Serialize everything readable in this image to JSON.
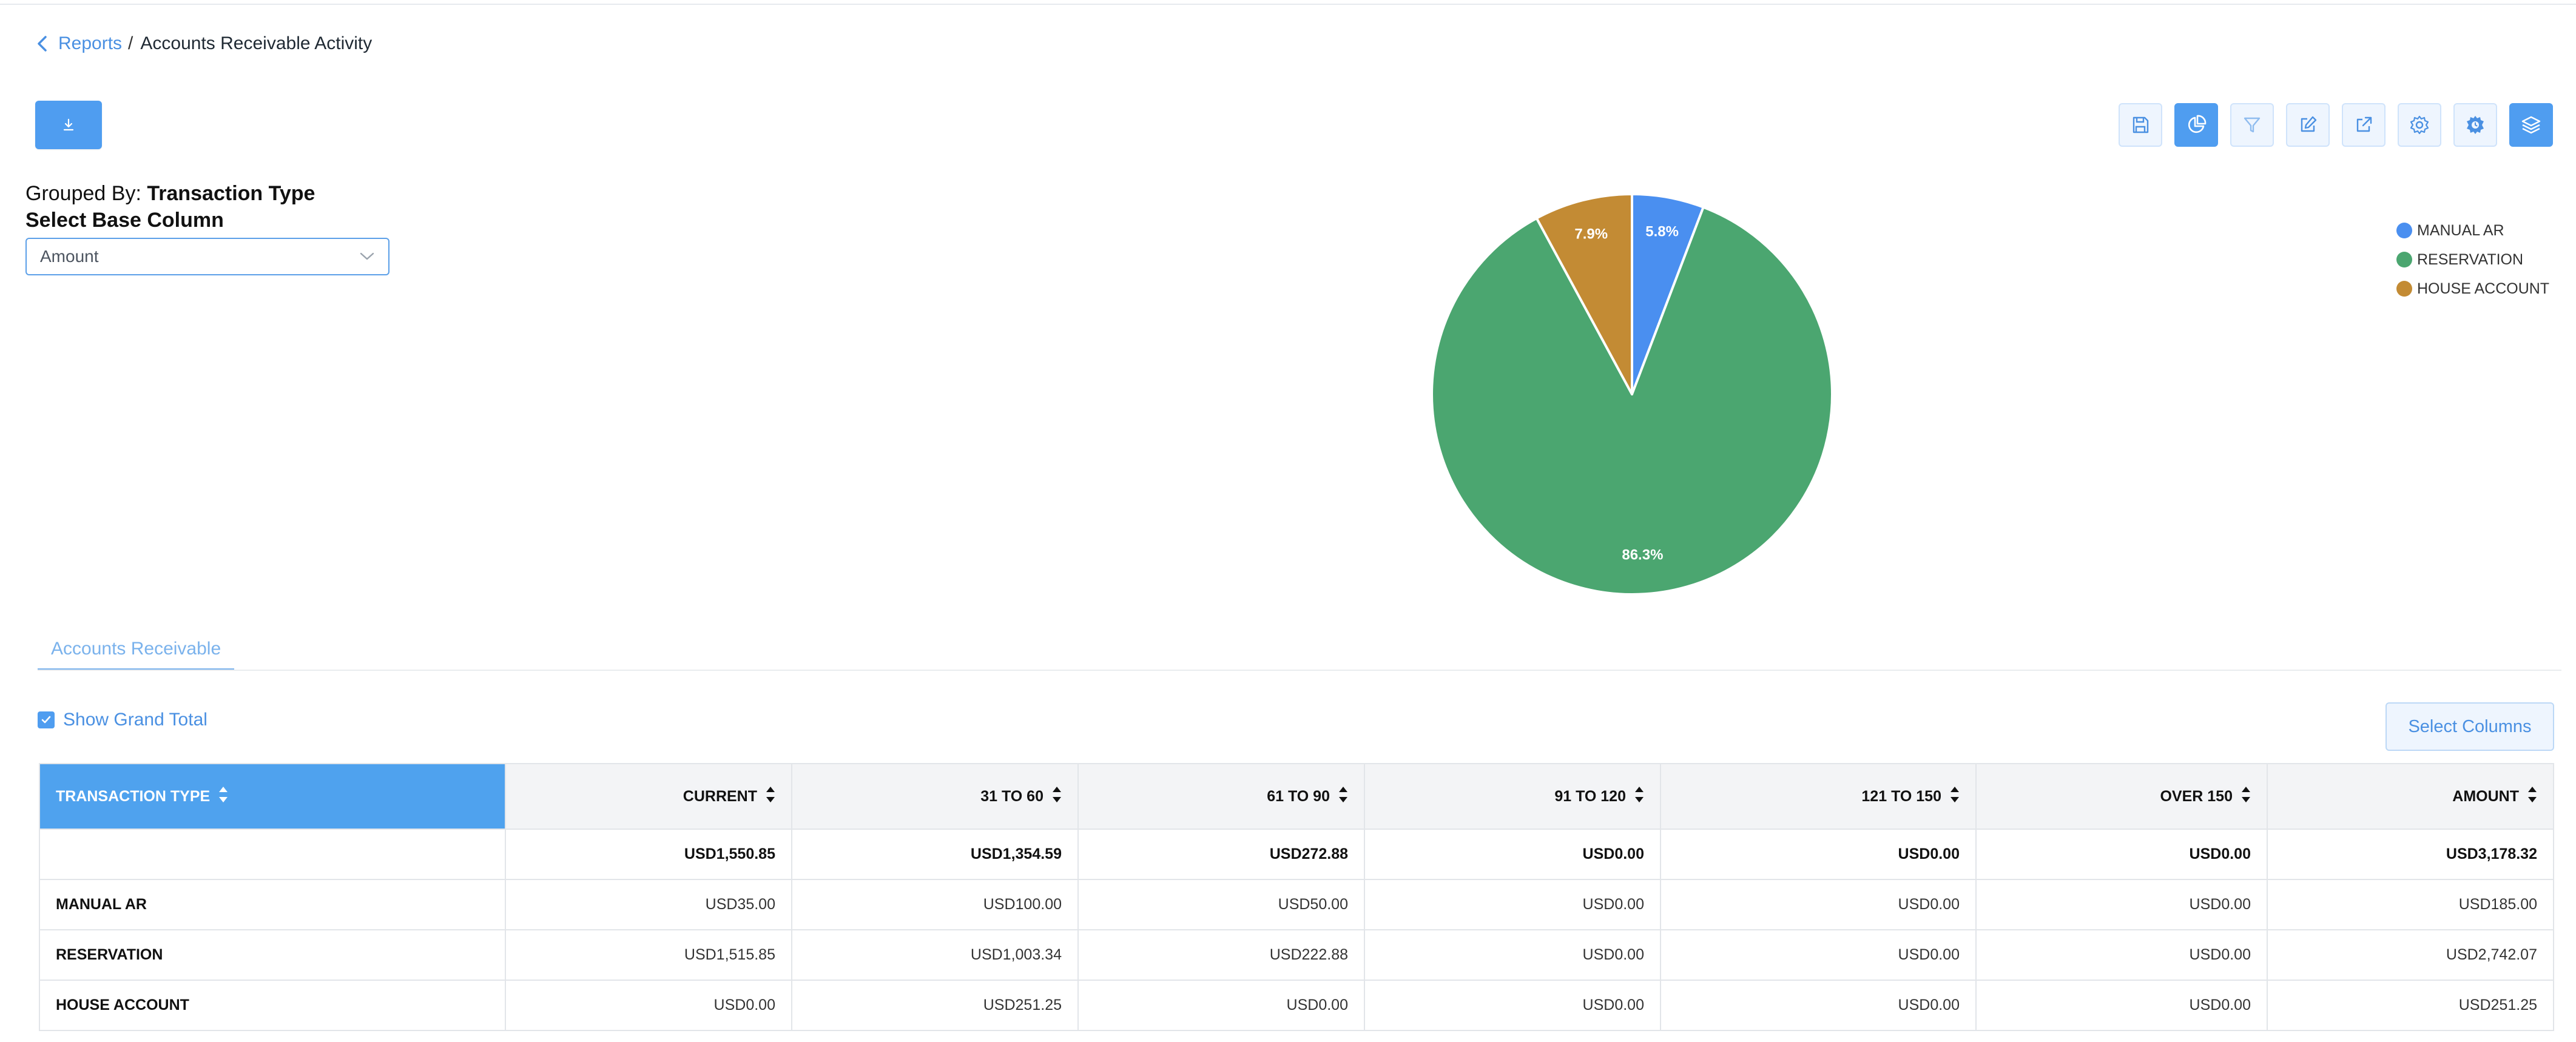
{
  "breadcrumb": {
    "parent": "Reports",
    "separator": "/",
    "current": "Accounts Receivable Activity"
  },
  "toolbar": {
    "buttons": [
      {
        "icon": "save-icon",
        "active": false
      },
      {
        "icon": "pie-chart-icon",
        "active": true
      },
      {
        "icon": "filter-icon",
        "active": false
      },
      {
        "icon": "edit-icon",
        "active": false
      },
      {
        "icon": "external-link-icon",
        "active": false
      },
      {
        "icon": "gear-icon",
        "active": false
      },
      {
        "icon": "scheduler-gear-icon",
        "active": false
      },
      {
        "icon": "layers-icon",
        "active": true
      }
    ]
  },
  "grouping": {
    "label": "Grouped By:",
    "value": "Transaction Type"
  },
  "base_column": {
    "label": "Select Base Column",
    "value": "Amount"
  },
  "chart_data": {
    "type": "pie",
    "slices": [
      {
        "label": "MANUAL AR",
        "value": 5.8,
        "display": "5.8%",
        "color": "#4a8ff0"
      },
      {
        "label": "RESERVATION",
        "value": 86.3,
        "display": "86.3%",
        "color": "#4ba670"
      },
      {
        "label": "HOUSE ACCOUNT",
        "value": 7.9,
        "display": "7.9%",
        "color": "#c38b34"
      }
    ],
    "legend_position": "top-right"
  },
  "tabs": [
    {
      "label": "Accounts Receivable",
      "active": true
    }
  ],
  "grand_total": {
    "label": "Show Grand Total",
    "checked": true
  },
  "select_columns_label": "Select Columns",
  "table": {
    "columns": [
      "TRANSACTION TYPE",
      "CURRENT",
      "31 TO 60",
      "61 TO 90",
      "91 TO 120",
      "121 TO 150",
      "OVER 150",
      "AMOUNT"
    ],
    "total_row": [
      "",
      "USD1,550.85",
      "USD1,354.59",
      "USD272.88",
      "USD0.00",
      "USD0.00",
      "USD0.00",
      "USD3,178.32"
    ],
    "rows": [
      [
        "MANUAL AR",
        "USD35.00",
        "USD100.00",
        "USD50.00",
        "USD0.00",
        "USD0.00",
        "USD0.00",
        "USD185.00"
      ],
      [
        "RESERVATION",
        "USD1,515.85",
        "USD1,003.34",
        "USD222.88",
        "USD0.00",
        "USD0.00",
        "USD0.00",
        "USD2,742.07"
      ],
      [
        "HOUSE ACCOUNT",
        "USD0.00",
        "USD251.25",
        "USD0.00",
        "USD0.00",
        "USD0.00",
        "USD0.00",
        "USD251.25"
      ]
    ]
  }
}
